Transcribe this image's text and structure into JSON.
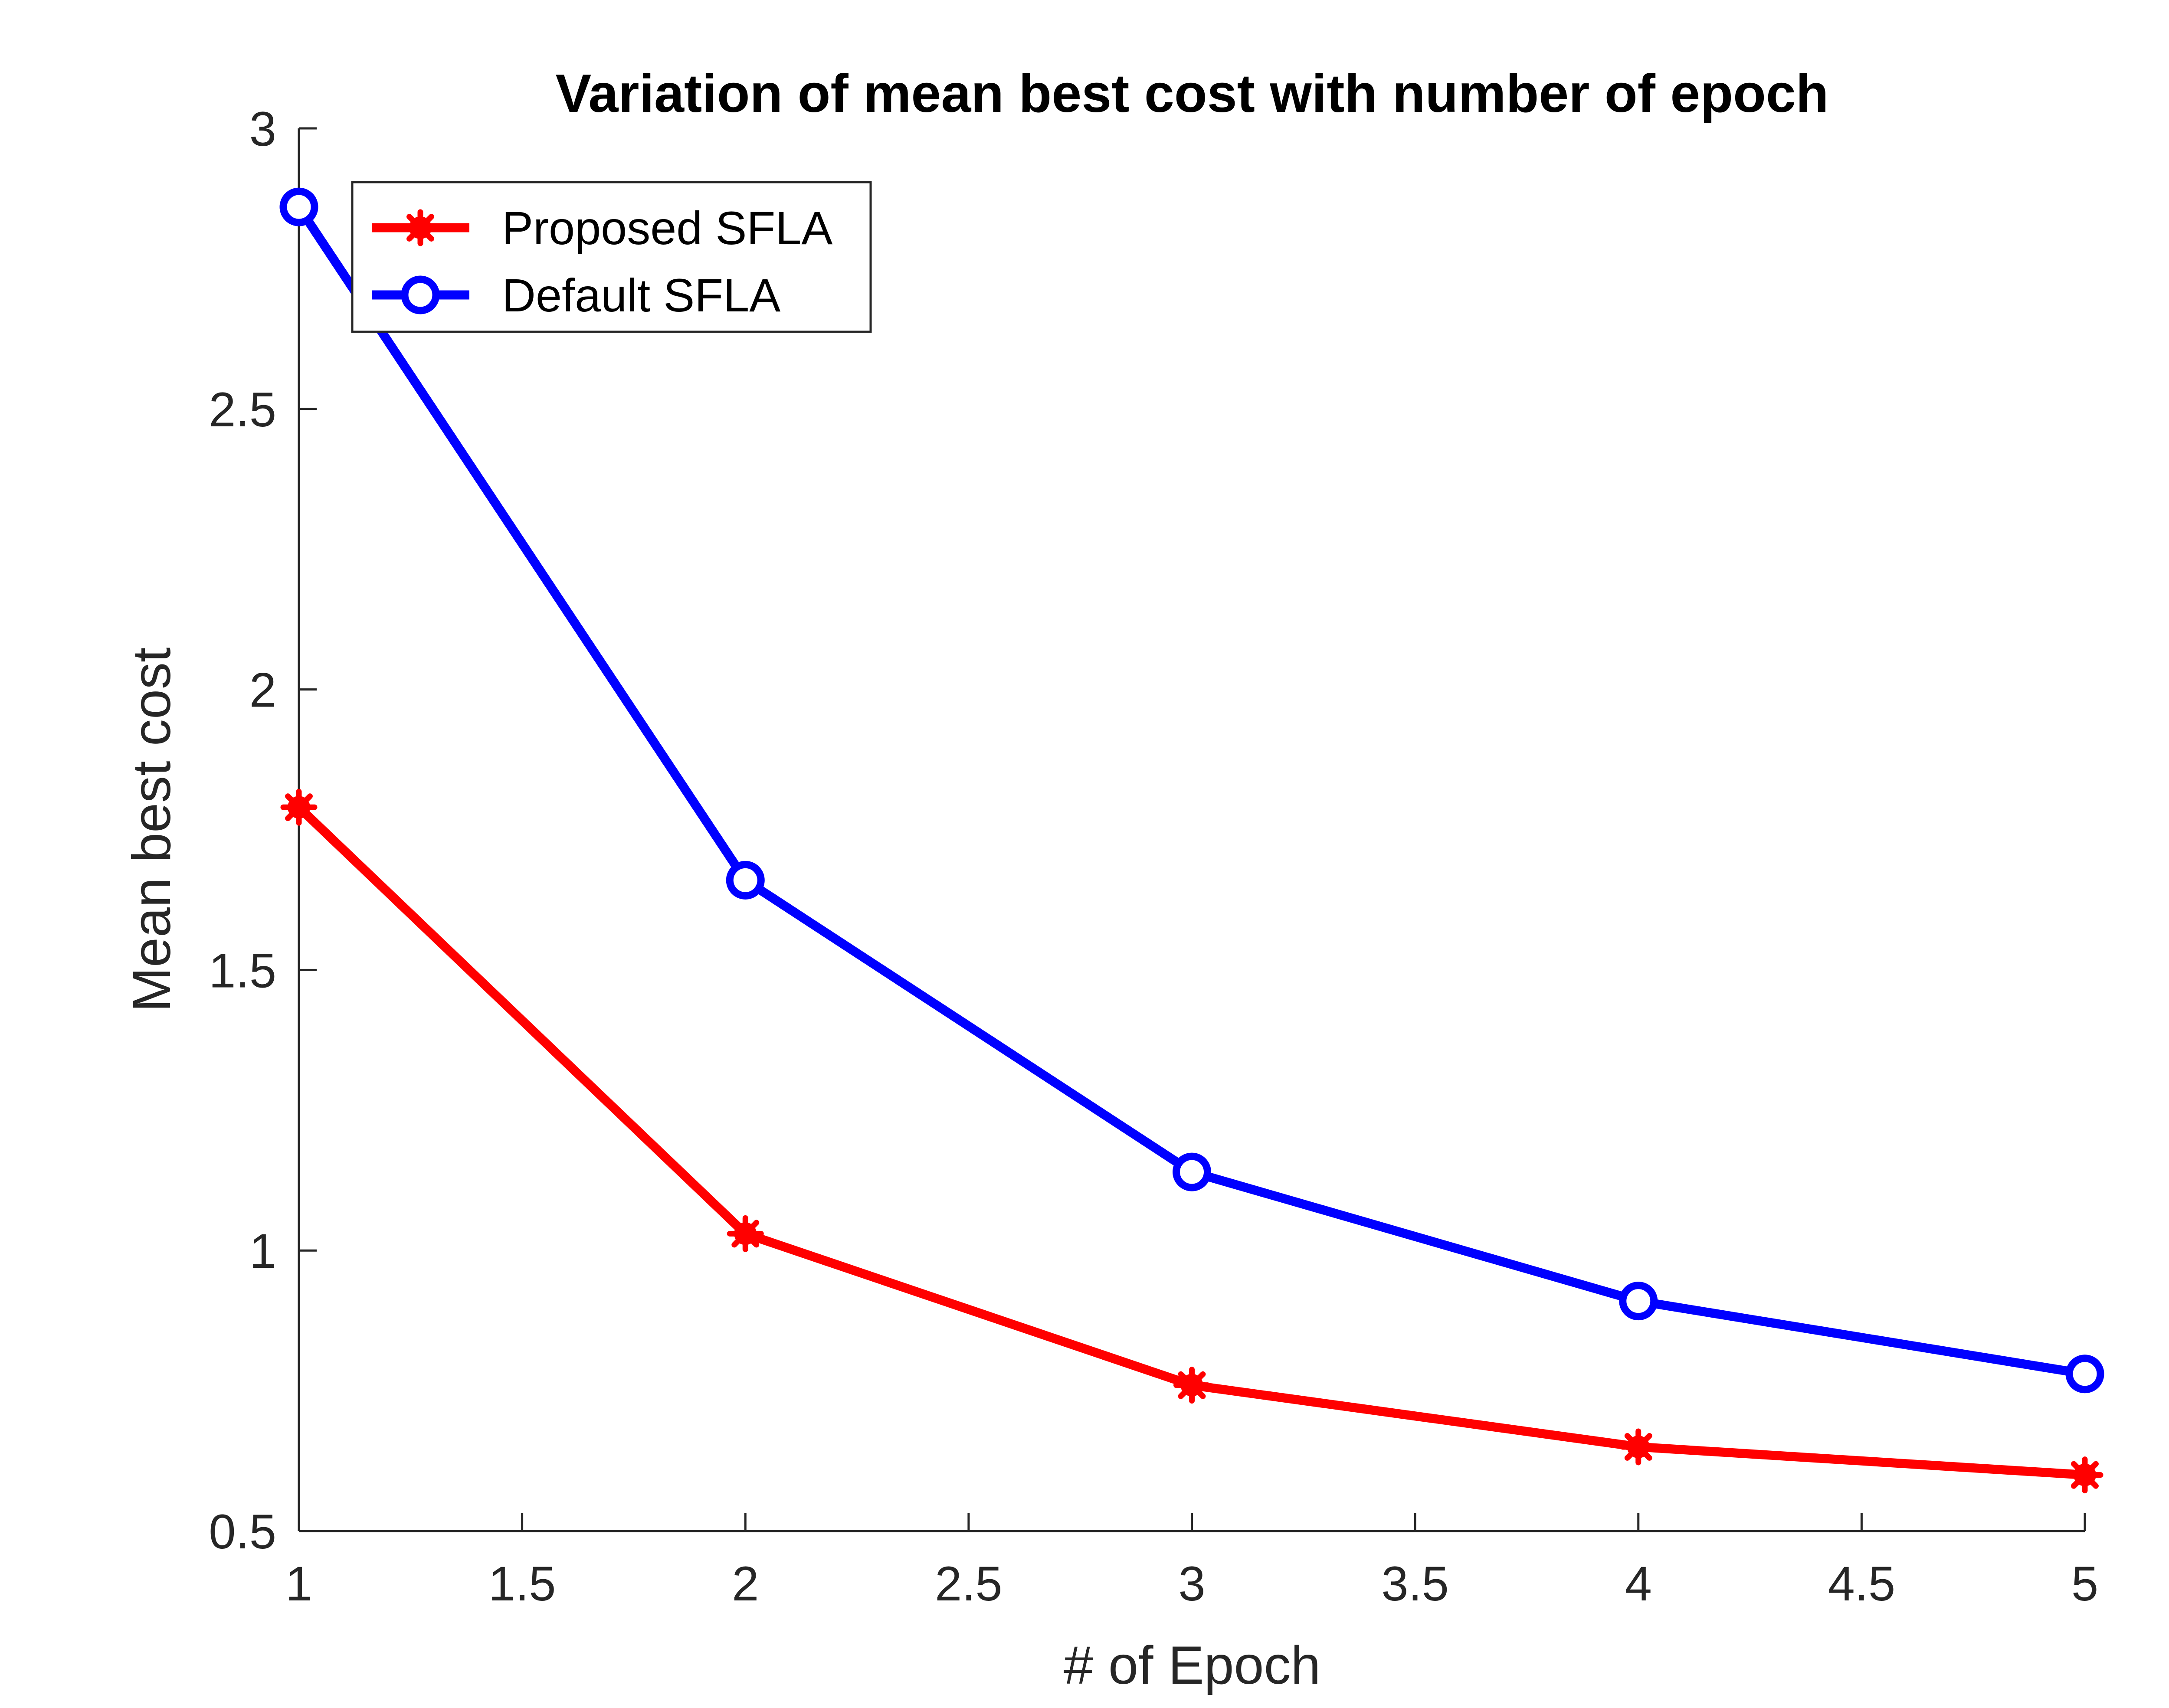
{
  "chart_data": {
    "type": "line",
    "title": "Variation of mean best cost with number of epoch",
    "xlabel": "# of Epoch",
    "ylabel": "Mean best cost",
    "xlim": [
      1,
      5
    ],
    "ylim": [
      0.5,
      3
    ],
    "xticks": [
      1,
      1.5,
      2,
      2.5,
      3,
      3.5,
      4,
      4.5,
      5
    ],
    "yticks": [
      0.5,
      1,
      1.5,
      2,
      2.5,
      3
    ],
    "x": [
      1,
      2,
      3,
      4,
      5
    ],
    "series": [
      {
        "name": "Proposed SFLA",
        "color": "#ff0000",
        "marker": "asterisk-filled",
        "values": [
          1.79,
          1.03,
          0.76,
          0.65,
          0.6
        ]
      },
      {
        "name": "Default SFLA",
        "color": "#0000ff",
        "marker": "circle-open",
        "values": [
          2.86,
          1.66,
          1.14,
          0.91,
          0.78
        ]
      }
    ],
    "grid": false,
    "legend_position": "top-left",
    "box": "left-bottom-axes"
  }
}
